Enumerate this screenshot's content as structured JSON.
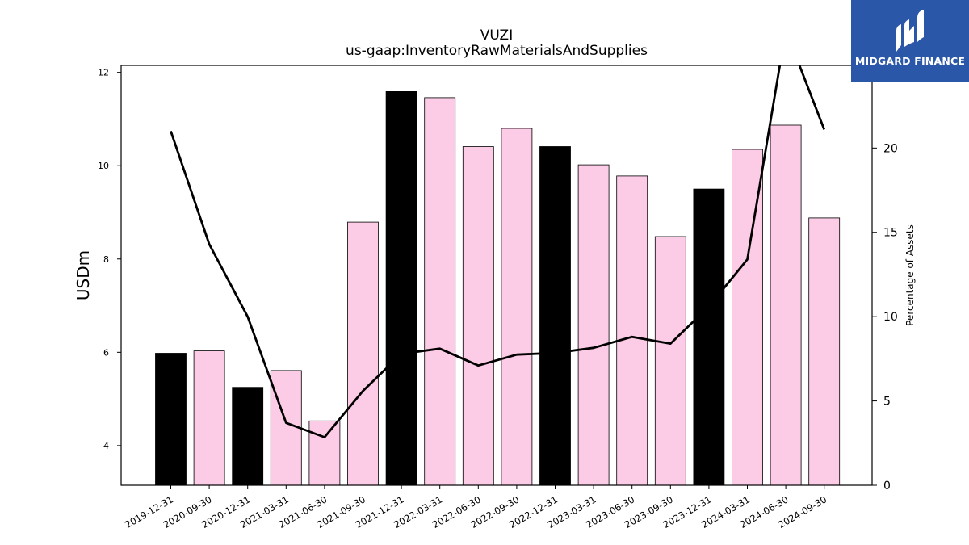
{
  "chart_data": {
    "type": "bar",
    "title": "VUZI",
    "subtitle": "us-gaap:InventoryRawMaterialsAndSupplies",
    "ylabel": "USDm",
    "y2label": "Percentage of Assets",
    "ylim": [
      3.15,
      12.15
    ],
    "y2lim": [
      0,
      24.9
    ],
    "yticks": [
      4,
      6,
      8,
      10,
      12
    ],
    "y2ticks": [
      0,
      5,
      10,
      15,
      20
    ],
    "categories": [
      "2019-12-31",
      "2020-09-30",
      "2020-12-31",
      "2021-03-31",
      "2021-06-30",
      "2021-09-30",
      "2021-12-31",
      "2022-03-31",
      "2022-06-30",
      "2022-09-30",
      "2022-12-31",
      "2023-03-31",
      "2023-06-30",
      "2023-09-30",
      "2023-12-31",
      "2024-03-31",
      "2024-06-30",
      "2024-09-30"
    ],
    "series": [
      {
        "type": "bar",
        "values": [
          5.98,
          6.03,
          5.25,
          5.61,
          4.53,
          8.79,
          11.59,
          11.46,
          10.41,
          10.8,
          10.41,
          10.02,
          9.78,
          8.48,
          9.5,
          10.35,
          10.87,
          8.88
        ],
        "colors": [
          "#000000",
          "#fccbe6",
          "#000000",
          "#fccbe6",
          "#fccbe6",
          "#fccbe6",
          "#000000",
          "#fccbe6",
          "#fccbe6",
          "#fccbe6",
          "#000000",
          "#fccbe6",
          "#fccbe6",
          "#fccbe6",
          "#000000",
          "#fccbe6",
          "#fccbe6",
          "#fccbe6"
        ]
      },
      {
        "type": "line",
        "axis": "right",
        "values": [
          21.0,
          14.3,
          10.0,
          3.7,
          2.85,
          5.6,
          7.8,
          8.1,
          7.1,
          7.75,
          7.85,
          8.15,
          8.8,
          8.4,
          10.6,
          13.4,
          27.0,
          21.1
        ],
        "color": "#000000"
      }
    ],
    "grid": false,
    "legend": "none"
  },
  "logo": {
    "text": "MIDGARD FINANCE",
    "background": "#2b57a8"
  }
}
